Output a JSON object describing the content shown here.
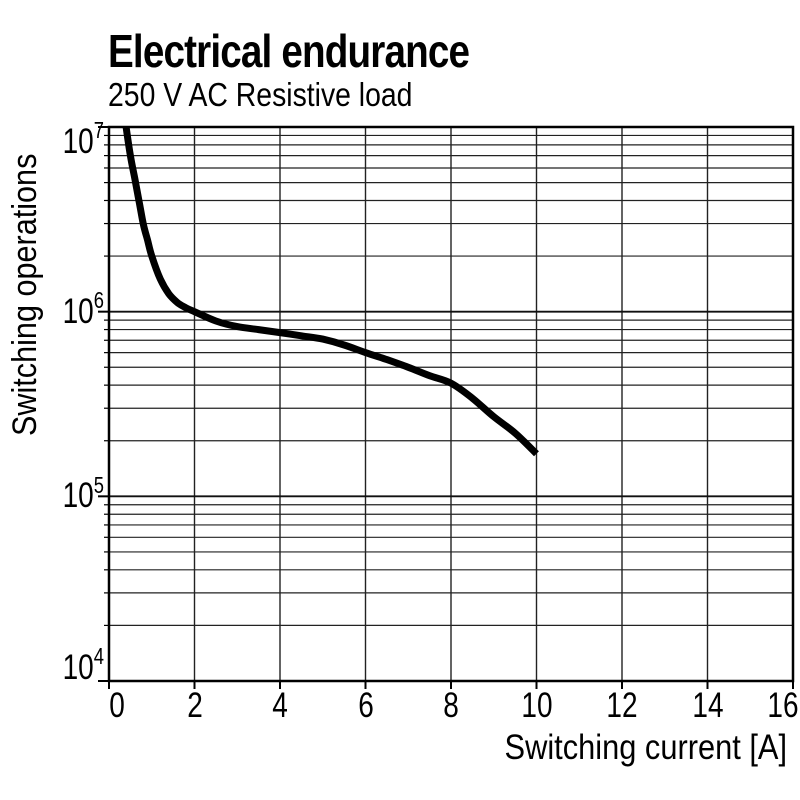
{
  "page": {
    "background": "#ffffff",
    "text_color": "#000000"
  },
  "chart_data": {
    "type": "line",
    "title": "Electrical endurance",
    "subtitle": "250 V AC Resistive load",
    "xlabel": "Switching current [A]",
    "ylabel": "Switching operations",
    "x_axis": {
      "scale": "linear",
      "min": 0,
      "max": 16,
      "ticks": [
        0,
        2,
        4,
        6,
        8,
        10,
        12,
        14,
        16
      ]
    },
    "y_axis": {
      "scale": "log",
      "min": 10000,
      "max": 10000000,
      "decade_exponents": [
        4,
        5,
        6,
        7
      ],
      "tick_label_base": "10",
      "minor_multiples": [
        2,
        3,
        4,
        5,
        6,
        7,
        8,
        9
      ]
    },
    "grid": {
      "minor_color": "#222222",
      "decade_color": "#111111",
      "border_color": "#000000",
      "grid_on": true
    },
    "legend": {
      "visible": false
    },
    "series": [
      {
        "name": "endurance-250V-AC-resistive-load",
        "color": "#000000",
        "points_A_vs_operations": [
          [
            0.4,
            10000000
          ],
          [
            0.5,
            7000000
          ],
          [
            0.6,
            5300000
          ],
          [
            0.7,
            4000000
          ],
          [
            0.8,
            3000000
          ],
          [
            0.9,
            2450000
          ],
          [
            1.0,
            2000000
          ],
          [
            1.2,
            1500000
          ],
          [
            1.4,
            1250000
          ],
          [
            1.6,
            1120000
          ],
          [
            1.8,
            1050000
          ],
          [
            2.0,
            1000000
          ],
          [
            2.5,
            890000
          ],
          [
            3.0,
            830000
          ],
          [
            3.5,
            800000
          ],
          [
            4.0,
            770000
          ],
          [
            4.5,
            740000
          ],
          [
            5.0,
            710000
          ],
          [
            5.5,
            660000
          ],
          [
            6.0,
            600000
          ],
          [
            6.5,
            550000
          ],
          [
            7.0,
            500000
          ],
          [
            7.5,
            450000
          ],
          [
            8.0,
            410000
          ],
          [
            8.5,
            340000
          ],
          [
            9.0,
            270000
          ],
          [
            9.5,
            220000
          ],
          [
            10.0,
            170000
          ]
        ]
      }
    ]
  }
}
